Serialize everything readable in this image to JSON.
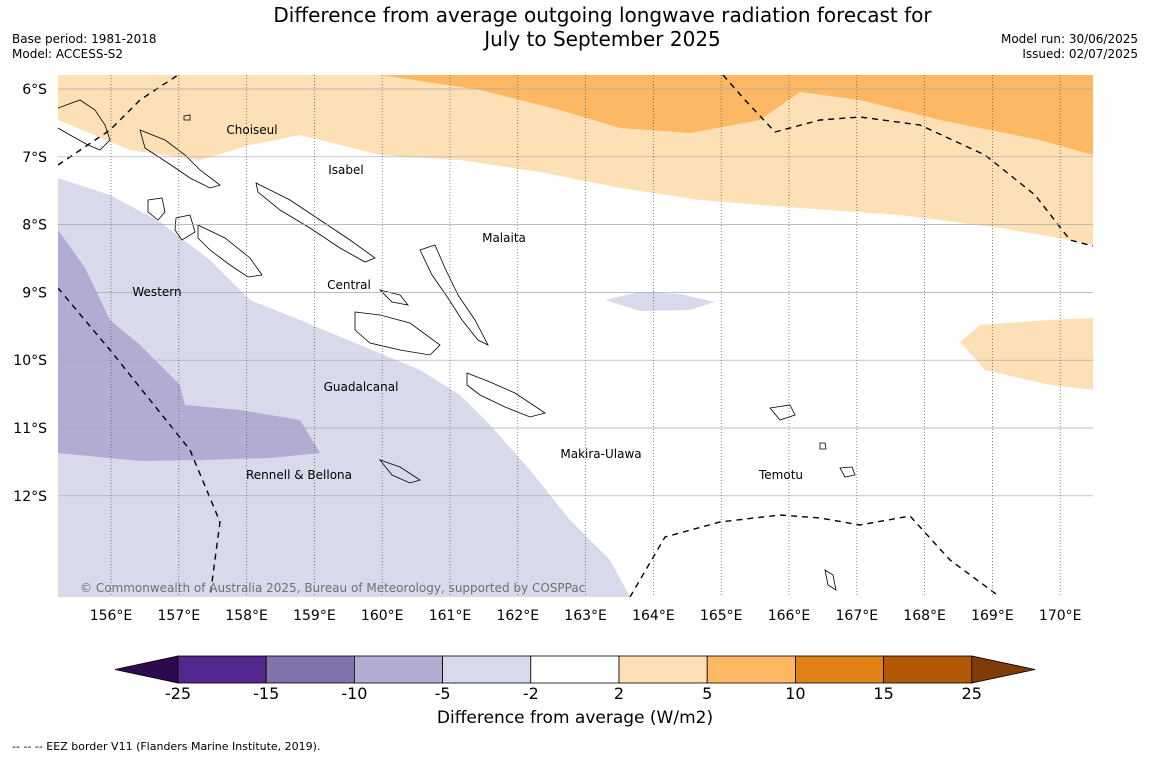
{
  "title_line1": "Difference from average outgoing longwave radiation forecast for",
  "title_line2": "July to September 2025",
  "meta_left": {
    "base_period": "Base period: 1981-2018",
    "model": "Model: ACCESS-S2"
  },
  "meta_right": {
    "model_run": "Model run: 30/06/2025",
    "issued": "Issued: 02/07/2025"
  },
  "copyright": "© Commonwealth of Australia 2025, Bureau of Meteorology, supported by COSPPac",
  "lat_labels": [
    "6°S",
    "7°S",
    "8°S",
    "9°S",
    "10°S",
    "11°S",
    "12°S"
  ],
  "lon_labels": [
    "156°E",
    "157°E",
    "158°E",
    "159°E",
    "160°E",
    "161°E",
    "162°E",
    "163°E",
    "164°E",
    "165°E",
    "166°E",
    "167°E",
    "168°E",
    "169°E",
    "170°E"
  ],
  "regions": [
    "Choiseul",
    "Isabel",
    "Malaita",
    "Western",
    "Central",
    "Guadalcanal",
    "Makira-Ulawa",
    "Temotu",
    "Rennell & Bellona"
  ],
  "colorbar": {
    "title": "Difference from average (W/m2)",
    "ticks": [
      "-25",
      "-15",
      "-10",
      "-5",
      "-2",
      "2",
      "5",
      "10",
      "15",
      "25"
    ],
    "colors": [
      "#2d0a4e",
      "#54278f",
      "#8073ac",
      "#b2abd2",
      "#d8daeb",
      "#ffffff",
      "#fee0b6",
      "#fdb863",
      "#e08214",
      "#b35806",
      "#7f3b08"
    ]
  },
  "footer": "--  --  -- EEZ border V11 (Flanders Marine Institute, 2019)."
}
